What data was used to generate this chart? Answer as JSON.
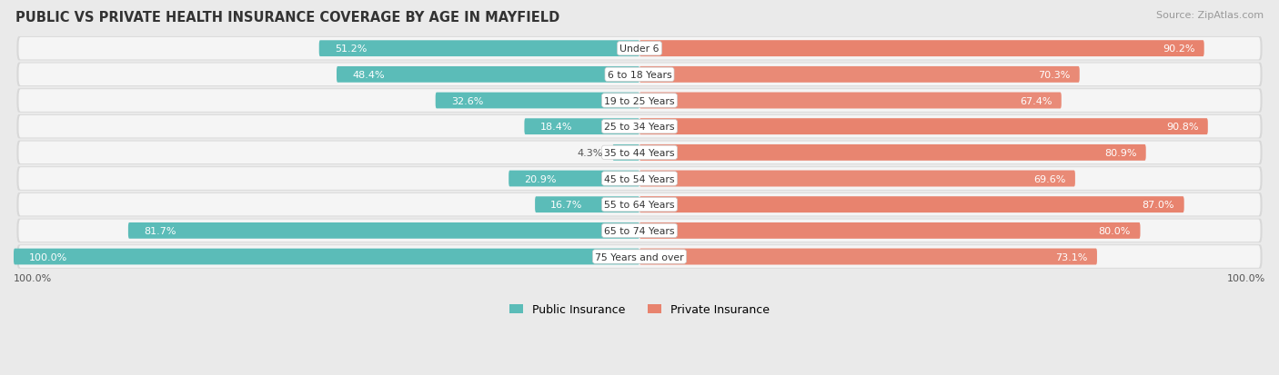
{
  "title": "PUBLIC VS PRIVATE HEALTH INSURANCE COVERAGE BY AGE IN MAYFIELD",
  "source": "Source: ZipAtlas.com",
  "categories": [
    "Under 6",
    "6 to 18 Years",
    "19 to 25 Years",
    "25 to 34 Years",
    "35 to 44 Years",
    "45 to 54 Years",
    "55 to 64 Years",
    "65 to 74 Years",
    "75 Years and over"
  ],
  "public_values": [
    51.2,
    48.4,
    32.6,
    18.4,
    4.3,
    20.9,
    16.7,
    81.7,
    100.0
  ],
  "private_values": [
    90.2,
    70.3,
    67.4,
    90.8,
    80.9,
    69.6,
    87.0,
    80.0,
    73.1
  ],
  "public_color": "#5bbcb8",
  "private_color": "#e8836e",
  "private_color_light": "#f2c4bb",
  "bar_height": 0.62,
  "background_color": "#eaeaea",
  "row_bg_color": "#f5f5f5",
  "row_border_color": "#d8d8d8",
  "legend_public": "Public Insurance",
  "legend_private": "Private Insurance",
  "max_val": 100.0,
  "label_inside_threshold": 15
}
